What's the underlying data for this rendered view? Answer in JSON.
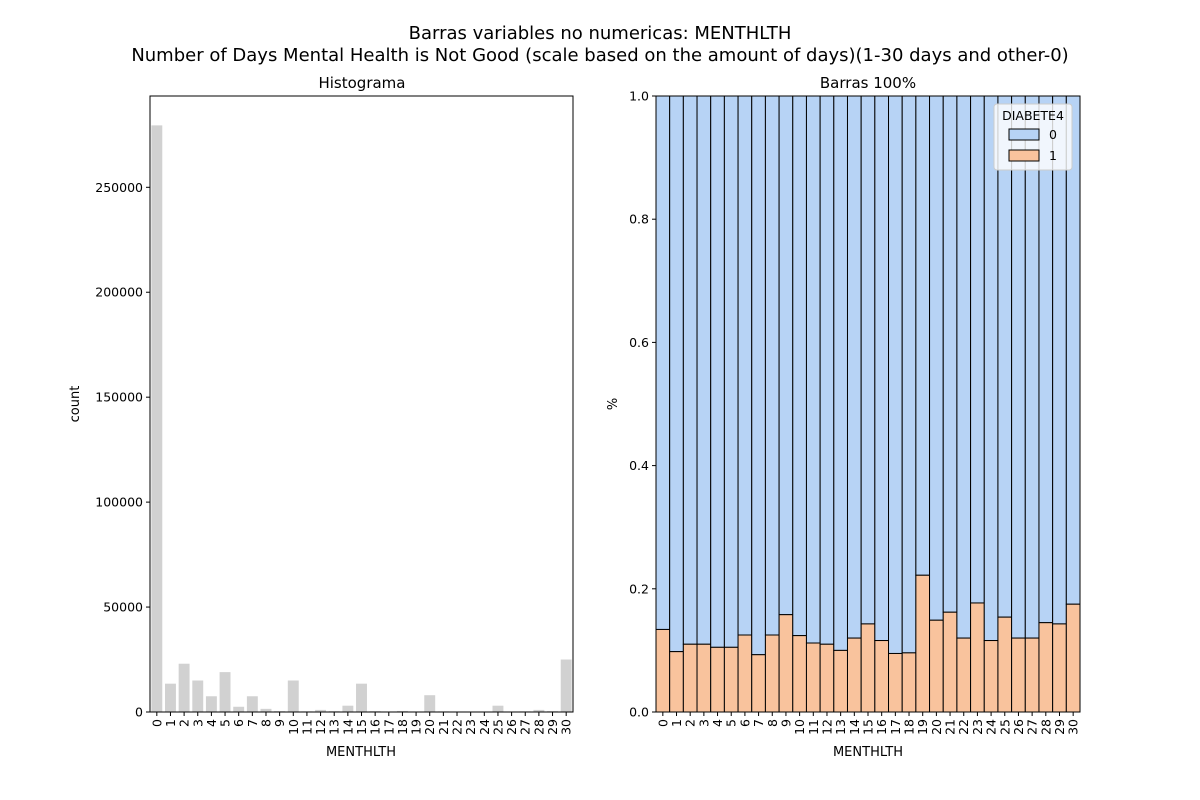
{
  "figure": {
    "suptitle_line1": "Barras variables no numericas: MENTHLTH",
    "suptitle_line2": "Number of Days Mental Health is Not Good (scale based on the amount of days)(1-30 days and other-0)"
  },
  "colors": {
    "hist_bar": "#d1d1d1",
    "series_0": "#b7d3f5",
    "series_1": "#f9c39d",
    "edge": "#000000"
  },
  "chart_data": [
    {
      "type": "bar",
      "title": "Histograma",
      "xlabel": "MENTHLTH",
      "ylabel": "count",
      "categories": [
        "0",
        "1",
        "2",
        "3",
        "4",
        "5",
        "6",
        "7",
        "8",
        "9",
        "10",
        "11",
        "12",
        "13",
        "14",
        "15",
        "16",
        "17",
        "18",
        "19",
        "20",
        "21",
        "22",
        "23",
        "24",
        "25",
        "26",
        "27",
        "28",
        "29",
        "30"
      ],
      "values": [
        279500,
        13500,
        23000,
        15000,
        7500,
        19000,
        2500,
        7500,
        1500,
        400,
        15000,
        300,
        1000,
        400,
        3000,
        13500,
        400,
        200,
        500,
        30,
        8000,
        300,
        200,
        100,
        200,
        3000,
        200,
        300,
        1000,
        400,
        25000
      ],
      "ylim": [
        0,
        293500
      ],
      "yticks": [
        0,
        50000,
        100000,
        150000,
        200000,
        250000
      ],
      "ytick_labels": [
        "0",
        "50000",
        "100000",
        "150000",
        "200000",
        "250000"
      ],
      "grid": false
    },
    {
      "type": "bar",
      "stacked": true,
      "normalized": true,
      "title": "Barras 100%",
      "xlabel": "MENTHLTH",
      "ylabel": "%",
      "categories": [
        "0",
        "1",
        "2",
        "3",
        "4",
        "5",
        "6",
        "7",
        "8",
        "9",
        "10",
        "11",
        "12",
        "13",
        "14",
        "15",
        "16",
        "17",
        "18",
        "19",
        "20",
        "21",
        "22",
        "23",
        "24",
        "25",
        "26",
        "27",
        "28",
        "29",
        "30"
      ],
      "series": [
        {
          "name": "0",
          "values": [
            0.866,
            0.902,
            0.89,
            0.89,
            0.895,
            0.895,
            0.875,
            0.907,
            0.875,
            0.842,
            0.876,
            0.888,
            0.89,
            0.9,
            0.88,
            0.857,
            0.884,
            0.905,
            0.904,
            0.778,
            0.851,
            0.838,
            0.88,
            0.823,
            0.884,
            0.846,
            0.88,
            0.88,
            0.855,
            0.857,
            0.825
          ]
        },
        {
          "name": "1",
          "values": [
            0.134,
            0.098,
            0.11,
            0.11,
            0.105,
            0.105,
            0.125,
            0.093,
            0.125,
            0.158,
            0.124,
            0.112,
            0.11,
            0.1,
            0.12,
            0.143,
            0.116,
            0.095,
            0.096,
            0.222,
            0.149,
            0.162,
            0.12,
            0.177,
            0.116,
            0.154,
            0.12,
            0.12,
            0.145,
            0.143,
            0.175
          ]
        }
      ],
      "ylim": [
        0,
        1
      ],
      "yticks": [
        0,
        0.2,
        0.4,
        0.6,
        0.8,
        1.0
      ],
      "ytick_labels": [
        "0.0",
        "0.2",
        "0.4",
        "0.6",
        "0.8",
        "1.0"
      ],
      "legend_title": "DIABETE4",
      "legend_placement": "top-right",
      "grid": false
    }
  ]
}
